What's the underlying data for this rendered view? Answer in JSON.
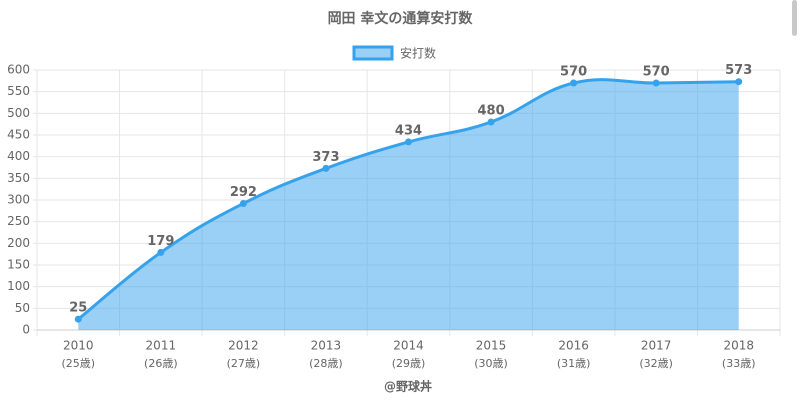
{
  "chart_data": {
    "type": "area",
    "title": "岡田 幸文の通算安打数",
    "categories": [
      "2010",
      "2011",
      "2012",
      "2013",
      "2014",
      "2015",
      "2016",
      "2017",
      "2018"
    ],
    "category_sublabels": [
      "(25歳)",
      "(26歳)",
      "(27歳)",
      "(28歳)",
      "(29歳)",
      "(30歳)",
      "(31歳)",
      "(32歳)",
      "(33歳)"
    ],
    "series": [
      {
        "name": "安打数",
        "color": "#36a2eb",
        "values": [
          25,
          179,
          292,
          373,
          434,
          480,
          570,
          570,
          573
        ]
      }
    ],
    "ylim": [
      0,
      600
    ],
    "yticks": [
      0,
      50,
      100,
      150,
      200,
      250,
      300,
      350,
      400,
      450,
      500,
      550,
      600
    ],
    "grid": true,
    "legend": "top",
    "credit": "@野球丼"
  }
}
